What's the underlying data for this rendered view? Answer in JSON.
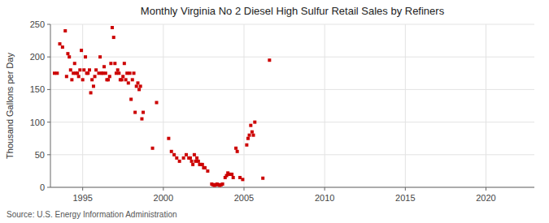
{
  "chart_data": {
    "type": "scatter",
    "title": "Monthly Virginia No 2 Diesel High Sulfur Retail Sales by Refiners",
    "ylabel": "Thousand Gallons per Day",
    "source": "Source: U.S. Energy Information Administration",
    "color": "#cc0000",
    "marker": "square",
    "grid": true,
    "xlim": [
      1993.0,
      2023.0
    ],
    "ylim": [
      0,
      250
    ],
    "xticks": [
      1995,
      2000,
      2005,
      2010,
      2015,
      2020
    ],
    "yticks": [
      0,
      50,
      100,
      150,
      200,
      250
    ],
    "x": [
      1993.25,
      1993.42,
      1993.58,
      1993.75,
      1993.92,
      1994.0,
      1994.08,
      1994.17,
      1994.25,
      1994.33,
      1994.42,
      1994.5,
      1994.58,
      1994.67,
      1994.75,
      1994.83,
      1994.92,
      1995.0,
      1995.08,
      1995.17,
      1995.25,
      1995.33,
      1995.42,
      1995.5,
      1995.58,
      1995.67,
      1995.75,
      1995.83,
      1996.0,
      1996.08,
      1996.17,
      1996.25,
      1996.33,
      1996.42,
      1996.5,
      1996.58,
      1996.67,
      1996.75,
      1996.83,
      1996.92,
      1997.0,
      1997.08,
      1997.17,
      1997.25,
      1997.33,
      1997.42,
      1997.5,
      1997.58,
      1997.67,
      1997.75,
      1997.83,
      1997.92,
      1998.0,
      1998.08,
      1998.17,
      1998.25,
      1998.33,
      1998.42,
      1998.5,
      1998.58,
      1998.67,
      1998.75,
      1999.33,
      1999.58,
      2000.33,
      2000.5,
      2000.67,
      2000.83,
      2001.0,
      2001.25,
      2001.42,
      2001.58,
      2001.67,
      2001.75,
      2001.83,
      2001.92,
      2002.0,
      2002.08,
      2002.17,
      2002.25,
      2002.33,
      2002.42,
      2002.5,
      2002.58,
      2002.75,
      2003.0,
      2003.08,
      2003.17,
      2003.25,
      2003.33,
      2003.42,
      2003.5,
      2003.58,
      2003.67,
      2003.83,
      2003.92,
      2004.0,
      2004.08,
      2004.17,
      2004.25,
      2004.33,
      2004.5,
      2004.58,
      2004.75,
      2004.92,
      2005.17,
      2005.25,
      2005.33,
      2005.42,
      2005.5,
      2005.58,
      2005.67,
      2006.58,
      2006.17
    ],
    "values": [
      175,
      175,
      220,
      215,
      240,
      170,
      205,
      200,
      180,
      165,
      175,
      190,
      175,
      175,
      170,
      180,
      210,
      165,
      180,
      200,
      175,
      175,
      180,
      145,
      165,
      155,
      170,
      180,
      175,
      200,
      175,
      175,
      185,
      175,
      165,
      165,
      170,
      190,
      245,
      230,
      190,
      175,
      180,
      175,
      165,
      165,
      170,
      190,
      165,
      175,
      160,
      175,
      135,
      165,
      175,
      115,
      155,
      160,
      150,
      155,
      105,
      115,
      60,
      130,
      75,
      55,
      50,
      45,
      40,
      45,
      50,
      45,
      45,
      40,
      35,
      50,
      40,
      45,
      40,
      35,
      35,
      35,
      30,
      30,
      25,
      5,
      4,
      3,
      4,
      5,
      4,
      3,
      4,
      5,
      15,
      18,
      22,
      20,
      20,
      20,
      15,
      60,
      55,
      15,
      12,
      65,
      75,
      80,
      95,
      85,
      80,
      100,
      195,
      14
    ]
  }
}
